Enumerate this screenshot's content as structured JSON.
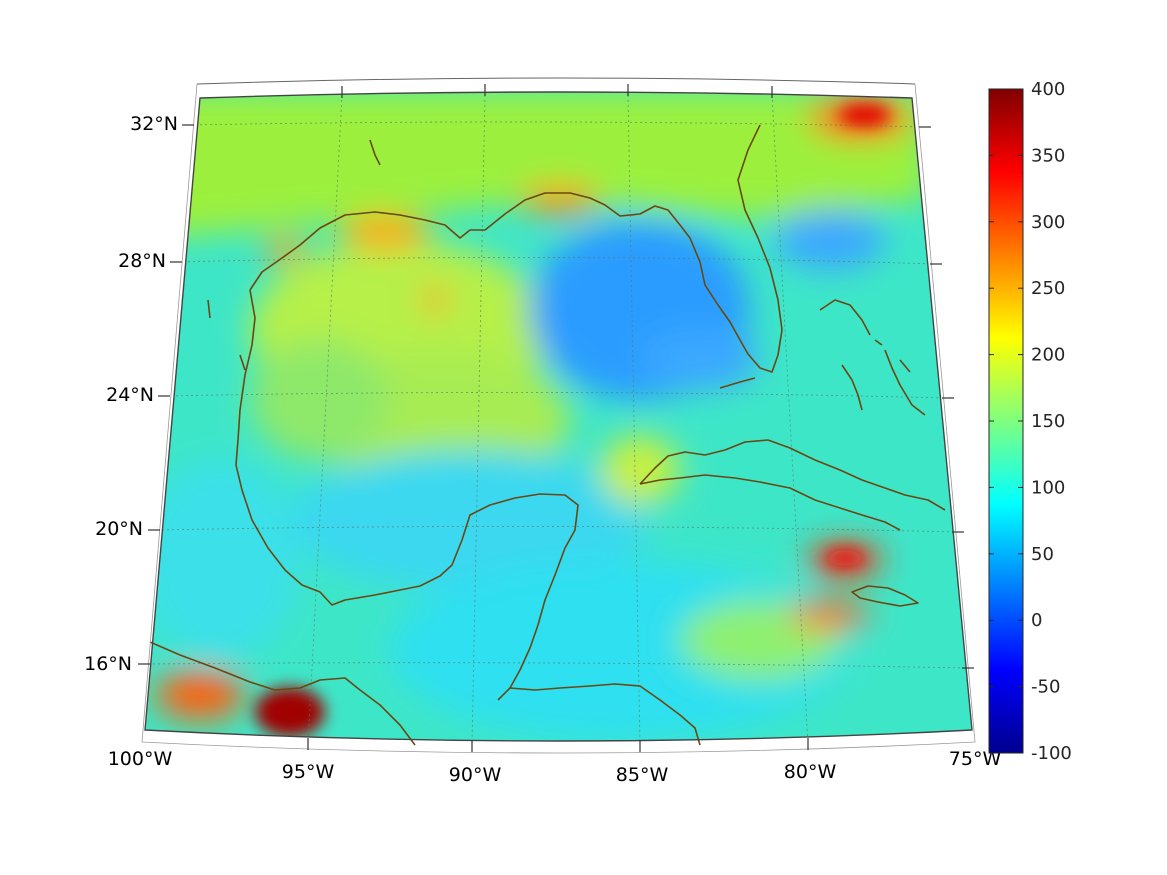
{
  "map": {
    "projection": "lambert-conic",
    "lon_range": [
      -100,
      -75
    ],
    "lat_range": [
      14,
      33
    ],
    "lon_ticks": [
      "100°W",
      "95°W",
      "90°W",
      "85°W",
      "80°W",
      "75°W"
    ],
    "lat_ticks": [
      "32°N",
      "28°N",
      "24°N",
      "20°N",
      "16°N"
    ],
    "coastline_color": "#6b4712",
    "grid": true
  },
  "colorbar": {
    "colormap": "jet",
    "min": -100,
    "max": 400,
    "ticks": [
      "400",
      "350",
      "300",
      "250",
      "200",
      "150",
      "100",
      "50",
      "0",
      "-50",
      "-100"
    ]
  }
}
